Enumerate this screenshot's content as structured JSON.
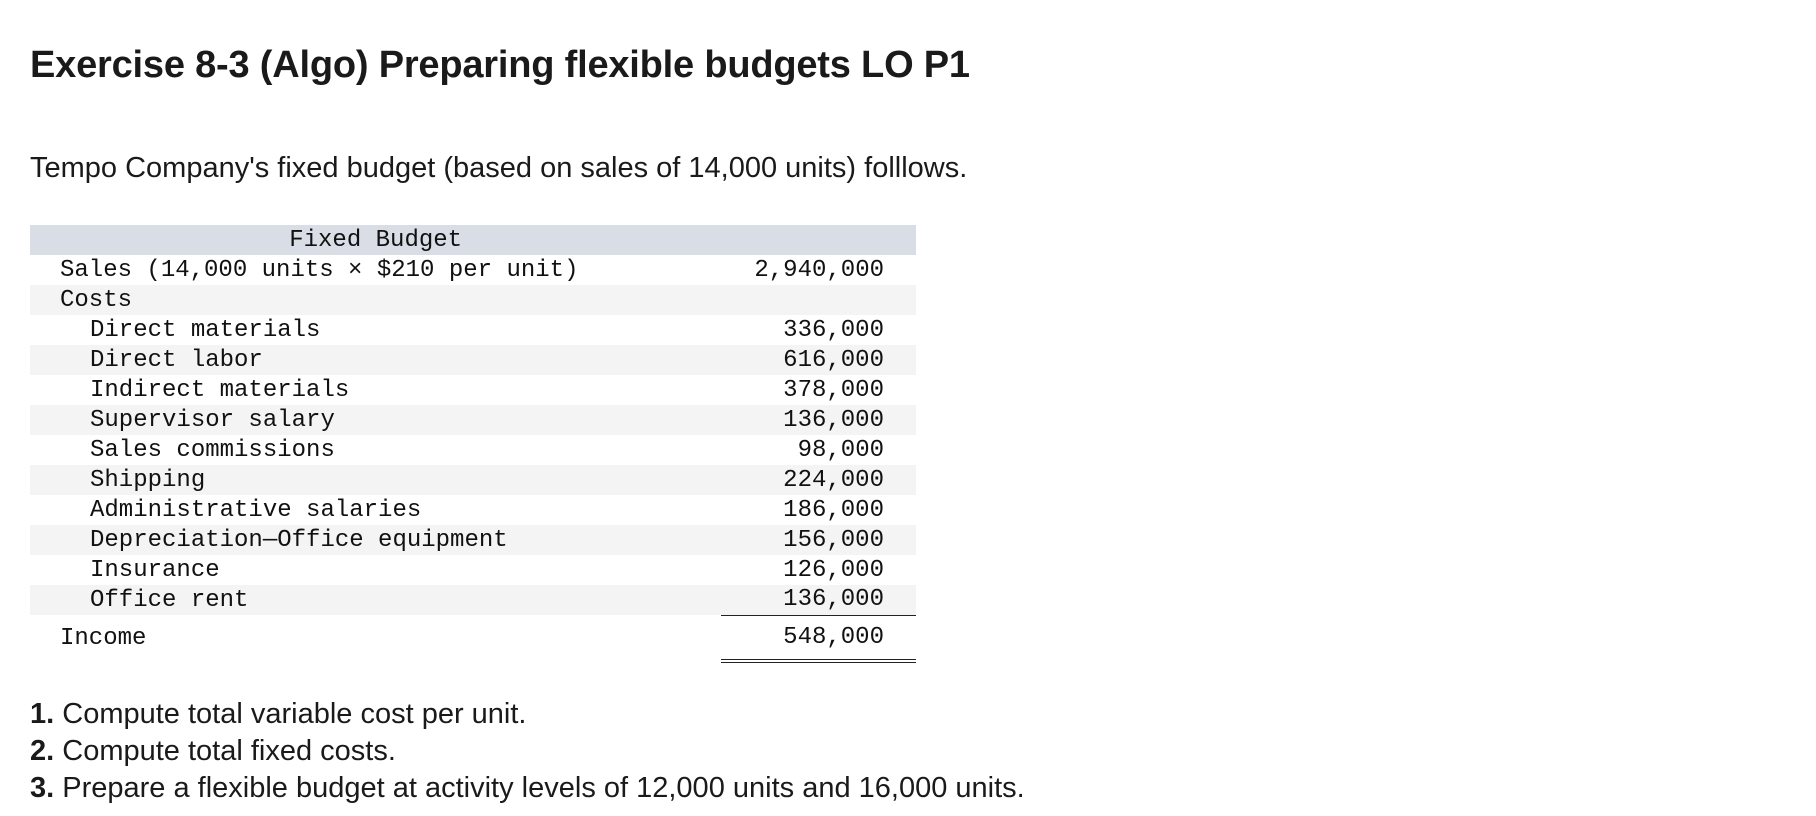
{
  "title": "Exercise 8-3 (Algo) Preparing flexible budgets LO P1",
  "intro": "Tempo Company's fixed budget (based on sales of 14,000 units) folllows.",
  "budget": {
    "header": "Fixed Budget",
    "sales": {
      "label": "Sales (14,000 units × $210 per unit)",
      "value": "2,940,000"
    },
    "costs_label": "Costs",
    "costs": [
      {
        "label": "Direct materials",
        "value": "336,000"
      },
      {
        "label": "Direct labor",
        "value": "616,000"
      },
      {
        "label": "Indirect materials",
        "value": "378,000"
      },
      {
        "label": "Supervisor salary",
        "value": "136,000"
      },
      {
        "label": "Sales commissions",
        "value": "98,000"
      },
      {
        "label": "Shipping",
        "value": "224,000"
      },
      {
        "label": "Administrative salaries",
        "value": "186,000"
      },
      {
        "label": "Depreciation—Office equipment",
        "value": "156,000"
      },
      {
        "label": "Insurance",
        "value": "126,000"
      },
      {
        "label": "Office rent",
        "value": "136,000"
      }
    ],
    "income": {
      "label": "Income",
      "value": "548,000"
    }
  },
  "questions": [
    {
      "num": "1.",
      "text": "Compute total variable cost per unit."
    },
    {
      "num": "2.",
      "text": "Compute total fixed costs."
    },
    {
      "num": "3.",
      "text": "Prepare a flexible budget at activity levels of 12,000 units and 16,000 units."
    }
  ]
}
